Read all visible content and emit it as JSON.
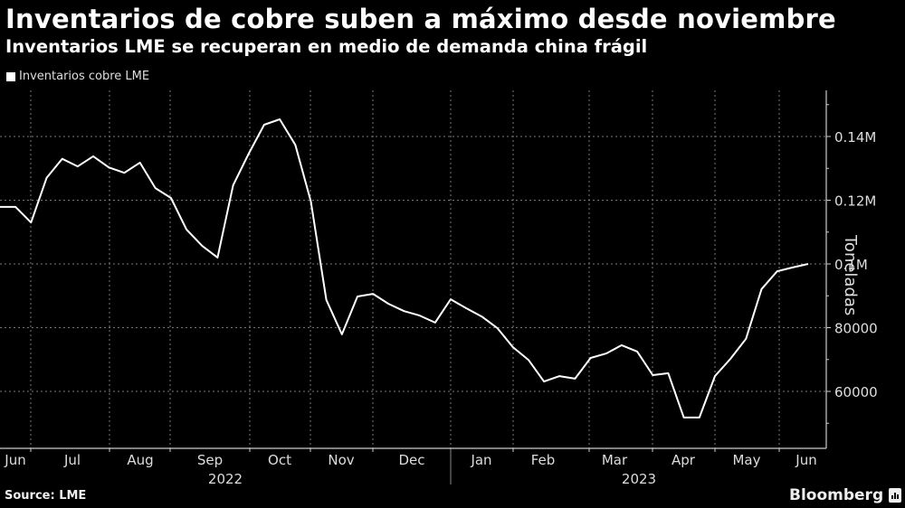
{
  "header": {
    "title": "Inventarios de cobre suben a máximo desde noviembre",
    "subtitle": "Inventarios LME se recuperan en medio de demanda china frágil"
  },
  "legend": {
    "label": "Inventarios cobre LME",
    "color": "#ffffff"
  },
  "footer": {
    "source": "Source: LME",
    "brand": "Bloomberg"
  },
  "colors": {
    "background": "#000000",
    "line": "#ffffff",
    "grid": "#777777",
    "text": "#dddddd"
  },
  "chart_data": {
    "type": "line",
    "title": "Inventarios de cobre suben a máximo desde noviembre",
    "subtitle": "Inventarios LME se recuperan en medio de demanda china frágil",
    "xlabel": "",
    "ylabel": "Toneladas",
    "ylim": [
      44000,
      152000
    ],
    "yticks": [
      60000,
      80000,
      100000,
      120000,
      140000
    ],
    "ytick_labels": [
      "60000",
      "80000",
      "0.1M",
      "0.12M",
      "0.14M"
    ],
    "x_month_labels": [
      "Jun",
      "Jul",
      "Aug",
      "Sep",
      "Oct",
      "Nov",
      "Dec",
      "Jan",
      "Feb",
      "Mar",
      "Apr",
      "May",
      "Jun"
    ],
    "x_year_labels": [
      "2022",
      "2023"
    ],
    "grid": true,
    "legend_position": "top-left",
    "series": [
      {
        "name": "Inventarios cobre LME",
        "frequency": "weekly",
        "values": [
          117900,
          117900,
          113000,
          127000,
          133000,
          130600,
          133800,
          130300,
          128600,
          131800,
          123800,
          120700,
          110800,
          105700,
          102000,
          124700,
          134600,
          143700,
          145400,
          137400,
          119600,
          88700,
          77900,
          89800,
          90600,
          87500,
          85200,
          83800,
          81600,
          88900,
          86100,
          83500,
          79900,
          73900,
          69900,
          63100,
          64800,
          64000,
          70500,
          71900,
          74500,
          72500,
          65100,
          65700,
          51800,
          51800,
          64800,
          70200,
          76500,
          92100,
          97700,
          98900,
          100000
        ]
      }
    ]
  }
}
